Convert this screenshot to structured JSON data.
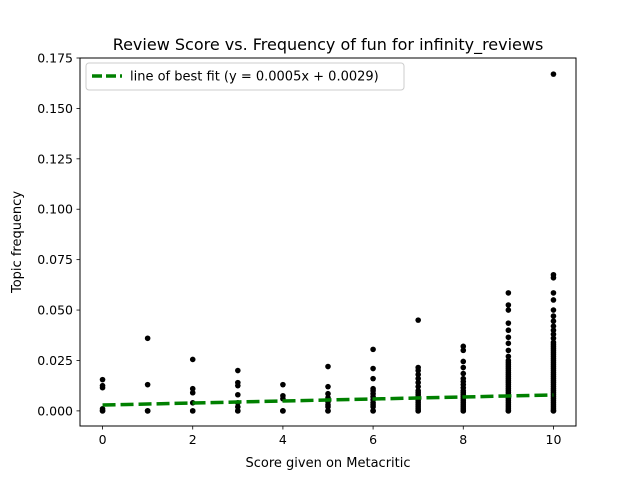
{
  "chart_data": {
    "type": "scatter",
    "title": "Review Score vs. Frequency of fun for infinity_reviews",
    "xlabel": "Score given on Metacritic",
    "ylabel": "Topic frequency",
    "xlim": [
      -0.5,
      10.5
    ],
    "ylim": [
      -0.0075,
      0.175
    ],
    "xticks": [
      0,
      2,
      4,
      6,
      8,
      10
    ],
    "yticks": [
      0.0,
      0.025,
      0.05,
      0.075,
      0.1,
      0.125,
      0.15,
      0.175
    ],
    "ytick_labels": [
      "0.000",
      "0.025",
      "0.050",
      "0.075",
      "0.100",
      "0.125",
      "0.150",
      "0.175"
    ],
    "legend": {
      "placement": "top-left",
      "entries": [
        "line of best fit (y = 0.0005x + 0.0029)"
      ]
    },
    "colors": {
      "points": "#000000",
      "fit_line": "#008000"
    },
    "points": {
      "0": [
        0,
        0,
        0.001,
        0.0115,
        0.0125,
        0.0155
      ],
      "1": [
        0,
        0,
        0,
        0.013,
        0.036
      ],
      "2": [
        0,
        0,
        0.004,
        0.009,
        0.011,
        0.0255
      ],
      "3": [
        0,
        0,
        0.002,
        0.004,
        0.008,
        0.0125,
        0.014,
        0.02
      ],
      "4": [
        0,
        0,
        0,
        0.006,
        0.0075,
        0.013
      ],
      "5": [
        0,
        0,
        0.002,
        0.003,
        0.0045,
        0.0065,
        0.0085,
        0.012,
        0.022
      ],
      "6": [
        0,
        0,
        0.002,
        0.003,
        0.004,
        0.0055,
        0.007,
        0.0085,
        0.01,
        0.011,
        0.016,
        0.021,
        0.0305
      ],
      "7": [
        0,
        0,
        0.001,
        0.002,
        0.003,
        0.004,
        0.005,
        0.006,
        0.007,
        0.008,
        0.009,
        0.01,
        0.012,
        0.014,
        0.016,
        0.018,
        0.02,
        0.0215,
        0.045
      ],
      "8": [
        0,
        0,
        0.001,
        0.002,
        0.003,
        0.004,
        0.005,
        0.006,
        0.007,
        0.008,
        0.009,
        0.01,
        0.0115,
        0.013,
        0.0145,
        0.016,
        0.0185,
        0.0215,
        0.0245,
        0.03,
        0.032
      ],
      "9": [
        0,
        0,
        0.001,
        0.002,
        0.003,
        0.004,
        0.005,
        0.006,
        0.007,
        0.008,
        0.009,
        0.01,
        0.011,
        0.012,
        0.013,
        0.014,
        0.015,
        0.016,
        0.017,
        0.018,
        0.019,
        0.02,
        0.021,
        0.022,
        0.023,
        0.024,
        0.025,
        0.027,
        0.03,
        0.0335,
        0.0365,
        0.04,
        0.0435,
        0.05,
        0.0525,
        0.0585
      ],
      "10": [
        0,
        0,
        0.001,
        0.002,
        0.003,
        0.004,
        0.005,
        0.006,
        0.007,
        0.008,
        0.009,
        0.01,
        0.011,
        0.012,
        0.013,
        0.014,
        0.015,
        0.016,
        0.017,
        0.018,
        0.019,
        0.02,
        0.021,
        0.022,
        0.023,
        0.024,
        0.025,
        0.026,
        0.027,
        0.028,
        0.029,
        0.03,
        0.031,
        0.032,
        0.033,
        0.034,
        0.036,
        0.038,
        0.04,
        0.042,
        0.0445,
        0.047,
        0.05,
        0.055,
        0.0585,
        0.066,
        0.0675,
        0.167
      ]
    },
    "fit_line": {
      "slope": 0.0005,
      "intercept": 0.0029,
      "x_range": [
        0,
        10
      ]
    }
  }
}
